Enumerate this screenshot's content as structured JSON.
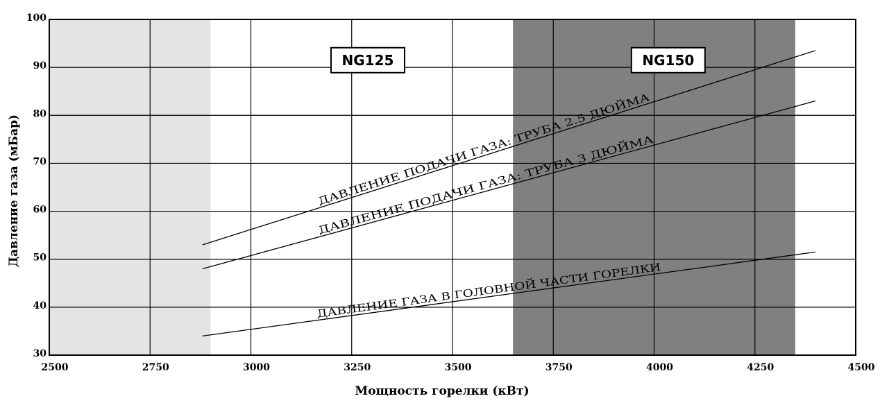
{
  "chart_data": {
    "type": "line",
    "title": "",
    "xlabel": "Мощность горелки (кВт)",
    "ylabel": "Давление газа (мБар)",
    "xlim": [
      2500,
      4500
    ],
    "ylim": [
      30,
      100
    ],
    "xticks": [
      2500,
      2750,
      3000,
      3250,
      3500,
      3750,
      4000,
      4250,
      4500
    ],
    "yticks": [
      30,
      40,
      50,
      60,
      70,
      80,
      90,
      100
    ],
    "grid": true,
    "legend": "none",
    "regions": [
      {
        "x_from": 2500,
        "x_to": 2900,
        "color": "#e4e4e4",
        "label": ""
      },
      {
        "x_from": 3650,
        "x_to": 4350,
        "color": "#808080",
        "label": "NG150"
      }
    ],
    "region_labels": [
      {
        "text": "NG125",
        "x": 3290,
        "y": 91.5
      },
      {
        "text": "NG150",
        "x": 4035,
        "y": 91.5
      }
    ],
    "series": [
      {
        "name": "ДАВЛЕНИЕ ПОДАЧИ ГАЗА: ТРУБА 2.5 ДЮЙМА",
        "x": [
          2880,
          4400
        ],
        "y": [
          53,
          93.5
        ],
        "color": "#000000"
      },
      {
        "name": "ДАВЛЕНИЕ ПОДАЧИ ГАЗА: ТРУБА 3 ДЮЙМА",
        "x": [
          2880,
          4400
        ],
        "y": [
          48,
          83
        ],
        "color": "#000000"
      },
      {
        "name": "ДАВЛЕНИЕ ГАЗА В ГОЛОВНОЙ ЧАСТИ ГОРЕЛКИ",
        "x": [
          2880,
          4400
        ],
        "y": [
          34,
          51.5
        ],
        "color": "#000000"
      }
    ]
  }
}
